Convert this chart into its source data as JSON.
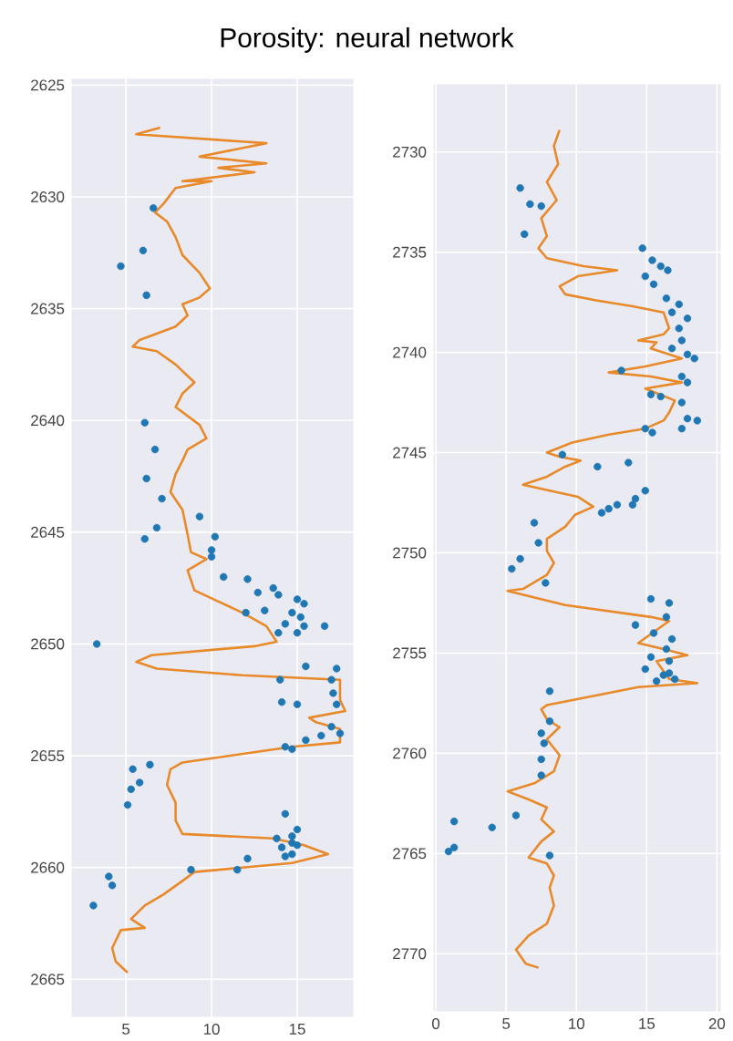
{
  "chart_data": [
    {
      "type": "scatter",
      "title": "Porosity: neural network",
      "xlim": [
        1.8,
        18.3
      ],
      "ylim": [
        2666.7,
        2624.7
      ],
      "xticks": [
        5,
        10,
        15
      ],
      "yticks": [
        2625,
        2630,
        2635,
        2640,
        2645,
        2650,
        2655,
        2660,
        2665
      ],
      "grid": true,
      "series": [
        {
          "type": "line",
          "color": "#e8892a",
          "line_style": "solid",
          "marker": "none",
          "x": [
            7.0,
            5.6,
            13.2,
            9.3,
            13.2,
            10.4,
            12.5,
            8.3,
            10.0,
            7.9,
            7.2,
            6.7,
            7.4,
            7.9,
            8.3,
            9.3,
            9.9,
            9.3,
            8.3,
            8.6,
            7.9,
            5.8,
            5.4,
            6.8,
            7.9,
            9.0,
            8.3,
            7.9,
            9.3,
            9.7,
            8.6,
            8.3,
            7.9,
            7.6,
            8.3,
            8.6,
            8.8,
            9.7,
            8.6,
            9.0,
            10.4,
            11.8,
            13.2,
            13.8,
            12.5,
            6.5,
            5.6,
            6.8,
            11.8,
            17.5,
            17.5,
            17.8,
            15.7,
            16.1,
            17.5,
            17.5,
            14.7,
            8.3,
            7.6,
            7.4,
            7.9,
            7.9,
            8.3,
            13.6,
            15.4,
            16.8,
            14.7,
            11.8,
            9.0,
            8.3,
            7.2,
            6.1,
            5.3,
            6.1,
            4.7,
            4.2,
            4.4,
            5.1
          ],
          "values": [
            2626.9,
            2627.2,
            2627.6,
            2628.2,
            2628.5,
            2628.7,
            2628.9,
            2629.3,
            2629.3,
            2629.6,
            2630.3,
            2630.7,
            2631.1,
            2631.8,
            2632.6,
            2633.4,
            2634.1,
            2634.5,
            2634.8,
            2635.3,
            2635.8,
            2636.4,
            2636.7,
            2636.9,
            2637.5,
            2638.3,
            2638.8,
            2639.4,
            2640.2,
            2640.8,
            2641.3,
            2641.8,
            2642.4,
            2643.2,
            2644.0,
            2645.1,
            2645.9,
            2646.2,
            2646.7,
            2647.6,
            2648.1,
            2648.6,
            2649.2,
            2649.9,
            2650.1,
            2650.5,
            2650.8,
            2651.1,
            2651.4,
            2651.6,
            2652.5,
            2653.0,
            2653.3,
            2653.5,
            2653.8,
            2654.4,
            2654.6,
            2655.3,
            2655.6,
            2656.3,
            2657.1,
            2657.9,
            2658.5,
            2658.7,
            2659.0,
            2659.4,
            2659.8,
            2660.0,
            2660.2,
            2660.6,
            2661.2,
            2661.7,
            2662.3,
            2662.7,
            2662.8,
            2663.6,
            2664.2,
            2664.7
          ]
        },
        {
          "color": "#1f77b4",
          "marker": "circle",
          "x": [
            6.6,
            6.0,
            4.7,
            6.2,
            6.1,
            6.7,
            6.2,
            7.1,
            9.3,
            6.8,
            6.1,
            10.2,
            10.0,
            10.0,
            10.7,
            12.1,
            12.7,
            13.6,
            13.9,
            15.0,
            15.4,
            12.0,
            13.1,
            14.7,
            15.2,
            14.3,
            15.4,
            16.6,
            13.9,
            15.0,
            3.3,
            15.5,
            14.0,
            17.3,
            17.0,
            17.1,
            17.3,
            14.1,
            15.0,
            17.0,
            17.5,
            16.4,
            15.5,
            14.3,
            14.7,
            5.4,
            6.4,
            5.8,
            5.3,
            5.1,
            14.3,
            15.0,
            13.8,
            14.7,
            14.1,
            14.7,
            14.3,
            15.0,
            14.7,
            12.1,
            11.5,
            8.8,
            4.0,
            4.2,
            3.1
          ],
          "values": [
            2630.5,
            2632.4,
            2633.1,
            2634.4,
            2640.1,
            2641.3,
            2642.6,
            2643.5,
            2644.3,
            2644.8,
            2645.3,
            2645.2,
            2645.8,
            2646.1,
            2647.0,
            2647.1,
            2647.7,
            2647.5,
            2647.8,
            2648.0,
            2648.2,
            2648.6,
            2648.5,
            2648.6,
            2648.8,
            2649.1,
            2649.2,
            2649.2,
            2649.5,
            2649.5,
            2650.0,
            2651.0,
            2651.6,
            2651.1,
            2651.6,
            2652.2,
            2652.7,
            2652.6,
            2652.7,
            2653.7,
            2654.0,
            2654.1,
            2654.3,
            2654.6,
            2654.7,
            2655.6,
            2655.4,
            2656.2,
            2656.5,
            2657.2,
            2657.6,
            2658.3,
            2658.7,
            2658.9,
            2659.1,
            2659.4,
            2659.5,
            2659.0,
            2658.6,
            2659.6,
            2660.1,
            2660.1,
            2660.4,
            2660.8,
            2661.7
          ]
        }
      ]
    },
    {
      "type": "scatter",
      "xlim": [
        -0.2,
        20.3
      ],
      "ylim": [
        2772.9,
        2726.6
      ],
      "xticks": [
        0,
        5,
        10,
        15,
        20
      ],
      "yticks": [
        2730,
        2735,
        2740,
        2745,
        2750,
        2755,
        2760,
        2765,
        2770
      ],
      "grid": true,
      "series": [
        {
          "type": "line",
          "color": "#e8892a",
          "line_style": "solid",
          "marker": "none",
          "x": [
            8.8,
            8.4,
            8.7,
            7.9,
            8.6,
            7.5,
            7.9,
            7.3,
            7.9,
            10.5,
            12.9,
            10.1,
            8.8,
            9.2,
            11.4,
            14.0,
            16.2,
            16.6,
            16.2,
            14.4,
            15.7,
            15.3,
            17.5,
            14.9,
            12.3,
            15.3,
            17.5,
            14.9,
            17.0,
            16.6,
            16.2,
            14.9,
            12.3,
            9.7,
            7.9,
            8.8,
            10.3,
            9.2,
            7.9,
            6.2,
            8.1,
            10.1,
            11.2,
            9.9,
            9.2,
            7.9,
            7.9,
            8.4,
            7.9,
            6.2,
            5.1,
            9.2,
            15.3,
            16.6,
            14.4,
            16.2,
            17.9,
            15.7,
            16.6,
            18.6,
            14.4,
            7.9,
            7.5,
            7.9,
            8.8,
            7.9,
            8.8,
            8.4,
            7.0,
            5.1,
            6.6,
            7.9,
            7.5,
            8.4,
            7.5,
            6.6,
            7.9,
            8.4,
            8.1,
            8.4,
            7.9,
            6.6,
            5.7,
            6.4,
            7.3
          ],
          "values": [
            2728.9,
            2729.7,
            2730.6,
            2731.5,
            2732.4,
            2733.3,
            2734.2,
            2734.8,
            2735.3,
            2735.7,
            2735.9,
            2736.2,
            2736.7,
            2737.1,
            2737.4,
            2737.7,
            2738.0,
            2738.8,
            2739.1,
            2739.4,
            2739.5,
            2739.8,
            2740.3,
            2740.7,
            2741.0,
            2741.2,
            2741.5,
            2741.8,
            2742.4,
            2743.0,
            2743.4,
            2743.8,
            2744.1,
            2744.5,
            2745.0,
            2745.2,
            2745.4,
            2745.7,
            2746.2,
            2746.6,
            2746.9,
            2747.2,
            2747.7,
            2748.1,
            2748.7,
            2749.3,
            2749.9,
            2750.5,
            2751.1,
            2751.8,
            2751.9,
            2752.6,
            2753.2,
            2753.4,
            2754.5,
            2754.8,
            2755.1,
            2755.4,
            2756.3,
            2756.5,
            2756.7,
            2757.6,
            2757.8,
            2758.3,
            2758.7,
            2759.3,
            2760.1,
            2760.9,
            2761.5,
            2761.9,
            2762.3,
            2762.7,
            2763.3,
            2763.9,
            2764.4,
            2765.2,
            2765.5,
            2766.1,
            2766.7,
            2767.6,
            2768.5,
            2769.1,
            2769.8,
            2770.5,
            2770.7
          ]
        },
        {
          "color": "#1f77b4",
          "marker": "circle",
          "x": [
            6.0,
            6.7,
            7.5,
            6.3,
            14.7,
            15.4,
            16.0,
            16.5,
            14.9,
            15.5,
            16.4,
            17.3,
            16.8,
            17.9,
            17.3,
            17.5,
            17.9,
            18.4,
            16.8,
            13.2,
            17.5,
            17.9,
            15.3,
            16.0,
            17.5,
            17.9,
            18.6,
            17.5,
            14.9,
            15.4,
            9.0,
            11.5,
            13.7,
            14.9,
            14.2,
            14.0,
            12.9,
            12.3,
            11.8,
            7.0,
            7.3,
            6.0,
            5.4,
            7.8,
            15.3,
            16.6,
            16.4,
            14.2,
            15.5,
            16.8,
            16.4,
            15.3,
            16.6,
            14.9,
            16.2,
            15.7,
            17.0,
            16.6,
            8.1,
            8.1,
            7.5,
            7.7,
            7.5,
            7.5,
            1.3,
            4.0,
            5.7,
            1.3,
            0.9,
            8.1
          ],
          "values": [
            2731.8,
            2732.6,
            2732.7,
            2734.1,
            2734.8,
            2735.4,
            2735.7,
            2735.9,
            2736.2,
            2736.6,
            2737.3,
            2737.6,
            2738.0,
            2738.3,
            2738.8,
            2739.4,
            2740.1,
            2740.3,
            2739.8,
            2740.9,
            2741.2,
            2741.5,
            2742.1,
            2742.2,
            2742.5,
            2743.3,
            2743.4,
            2743.8,
            2743.8,
            2744.0,
            2745.1,
            2745.7,
            2745.5,
            2746.9,
            2747.3,
            2747.6,
            2747.6,
            2747.8,
            2748.0,
            2748.5,
            2749.5,
            2750.3,
            2750.8,
            2751.5,
            2752.3,
            2752.5,
            2753.2,
            2753.6,
            2754.0,
            2754.3,
            2754.8,
            2755.2,
            2755.4,
            2755.8,
            2756.1,
            2756.4,
            2756.3,
            2756.0,
            2756.9,
            2758.4,
            2759.0,
            2759.5,
            2760.3,
            2761.1,
            2763.4,
            2763.7,
            2763.1,
            2764.7,
            2764.9,
            2765.1
          ]
        }
      ]
    }
  ]
}
